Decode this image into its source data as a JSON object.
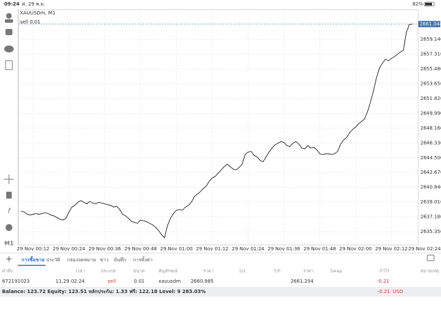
{
  "status_bar": {
    "time": "09:24",
    "date": "ศ. 29 พ.ย.",
    "battery": "82%"
  },
  "chart_data": {
    "type": "line",
    "symbol": "XAUUSDm, M1",
    "order_label": "sell 0.01",
    "timeframe": "M1",
    "categories": [
      null,
      null,
      null,
      null,
      "29 Nov 00:12",
      null,
      null,
      null,
      null,
      null,
      null,
      null,
      null,
      null,
      null,
      null,
      "29 Nov 00:24",
      null,
      null,
      null,
      null,
      null,
      null,
      null,
      null,
      null,
      null,
      null,
      "29 Nov 00:36",
      null,
      null,
      null,
      null,
      null,
      null,
      null,
      null,
      null,
      null,
      null,
      "29 Nov 00:48",
      null,
      null,
      null,
      null,
      null,
      null,
      null,
      null,
      null,
      null,
      null,
      "29 Nov 01:00",
      null,
      null,
      null,
      null,
      null,
      null,
      null,
      null,
      null,
      null,
      null,
      "29 Nov 01:12",
      null,
      null,
      null,
      null,
      null,
      null,
      null,
      null,
      null,
      null,
      null,
      "29 Nov 01:24",
      null,
      null,
      null,
      null,
      null,
      null,
      null,
      null,
      null,
      null,
      null,
      "29 Nov 01:36",
      null,
      null,
      null,
      null,
      null,
      null,
      null,
      null,
      null,
      null,
      null,
      "29 Nov 01:48",
      null,
      null,
      null,
      null,
      null,
      null,
      null,
      null,
      null,
      null,
      null,
      "29 Nov 02:00",
      null,
      null,
      null,
      null,
      null,
      null,
      null,
      null,
      null,
      null,
      null,
      "29 Nov 02:12",
      null,
      null,
      null,
      null,
      null,
      null,
      null,
      null,
      null,
      null,
      null,
      "29 Nov 02:24"
    ],
    "series": [
      {
        "color": "#000000",
        "values": [
          2637.9,
          2637.8,
          2637.5,
          2637.4,
          2637.5,
          2637.6,
          2637.5,
          2637.6,
          2637.7,
          2637.6,
          2637.4,
          2637.3,
          2637.1,
          2636.9,
          2636.8,
          2637.0,
          2637.8,
          2638.4,
          2638.6,
          2639.0,
          2639.2,
          2639.0,
          2638.8,
          2639.1,
          2638.9,
          2638.8,
          2639.0,
          2638.9,
          2638.8,
          2638.7,
          2638.6,
          2638.4,
          2638.5,
          2638.1,
          2637.5,
          2637.3,
          2637.0,
          2636.6,
          2636.5,
          2636.4,
          2636.8,
          2636.7,
          2636.6,
          2636.4,
          2636.2,
          2635.9,
          2635.5,
          2635.0,
          2634.6,
          2636.1,
          2637.0,
          2637.6,
          2638.0,
          2638.1,
          2638.0,
          2638.4,
          2638.6,
          2639.0,
          2639.7,
          2640.0,
          2640.3,
          2640.7,
          2641.0,
          2641.6,
          2642.0,
          2642.2,
          2642.6,
          2643.0,
          2643.4,
          2643.7,
          2643.4,
          2643.1,
          2643.0,
          2643.3,
          2643.7,
          2644.9,
          2645.2,
          2645.3,
          2644.8,
          2644.6,
          2644.2,
          2644.0,
          2644.6,
          2645.2,
          2645.7,
          2646.1,
          2646.3,
          2646.5,
          2646.4,
          2646.0,
          2645.9,
          2646.3,
          2646.5,
          2646.2,
          2645.7,
          2645.6,
          2646.0,
          2645.7,
          2645.8,
          2645.5,
          2645.0,
          2644.9,
          2645.0,
          2645.0,
          2644.9,
          2645.0,
          2645.3,
          2646.2,
          2646.7,
          2647.0,
          2647.6,
          2648.0,
          2648.3,
          2648.7,
          2649.0,
          2649.3,
          2650.2,
          2651.4,
          2652.8,
          2654.4,
          2655.6,
          2656.2,
          2656.7,
          2656.5,
          2656.8,
          2657.0,
          2657.3,
          2657.6,
          2657.8,
          2660.0,
          2661.0,
          2661.044,
          null,
          null,
          null,
          null,
          null
        ]
      }
    ],
    "current_price": 2661.044,
    "current_price_color": "#3d6fa8",
    "ylim": [
      2633.73,
      2662.83
    ],
    "yticks": [
      {
        "value": 2635.35,
        "label": "2635.350"
      },
      {
        "value": 2637.18,
        "label": "2637.180"
      },
      {
        "value": 2639.01,
        "label": "2639.010"
      },
      {
        "value": 2640.84,
        "label": "2640.840"
      },
      {
        "value": 2642.67,
        "label": "2642.670"
      },
      {
        "value": 2644.5,
        "label": "2644.500"
      },
      {
        "value": 2646.33,
        "label": "2646.330"
      },
      {
        "value": 2648.16,
        "label": "2648.160"
      },
      {
        "value": 2649.99,
        "label": "2649.990"
      },
      {
        "value": 2651.82,
        "label": "2651.820"
      },
      {
        "value": 2653.65,
        "label": "2653.650"
      },
      {
        "value": 2655.48,
        "label": "2655.480"
      },
      {
        "value": 2657.31,
        "label": "2657.310"
      },
      {
        "value": 2659.14,
        "label": "2659.140"
      }
    ],
    "grid": true
  },
  "tabs": [
    "การซื้อขาย",
    "ประวัติ",
    "กล่องจดหมาย",
    "ข่าว",
    "บันทึก",
    "การตั้งค่า"
  ],
  "table": {
    "header": [
      "คำสั่ง",
      "เวลา",
      "ประเภท",
      "ขนาด",
      "สัญลักษณ์",
      "ราคา",
      "S/L",
      "T/P",
      "ราคา",
      "Swap",
      "กำไร",
      "หมายเหตุ"
    ],
    "rows": [
      [
        "672191023",
        "11.29 02:24",
        "sell",
        "0.01",
        "xauusdm",
        "2660.985",
        "",
        "",
        "2661.204",
        "",
        "-0.21",
        ""
      ]
    ]
  },
  "balance": {
    "summary": "Balance: 123.72 Equity: 123.51 หลักประกัน: 1.33 ฟรี: 122.18 Level: 9 283.03%",
    "profit": "-0.21",
    "currency": "USD"
  }
}
